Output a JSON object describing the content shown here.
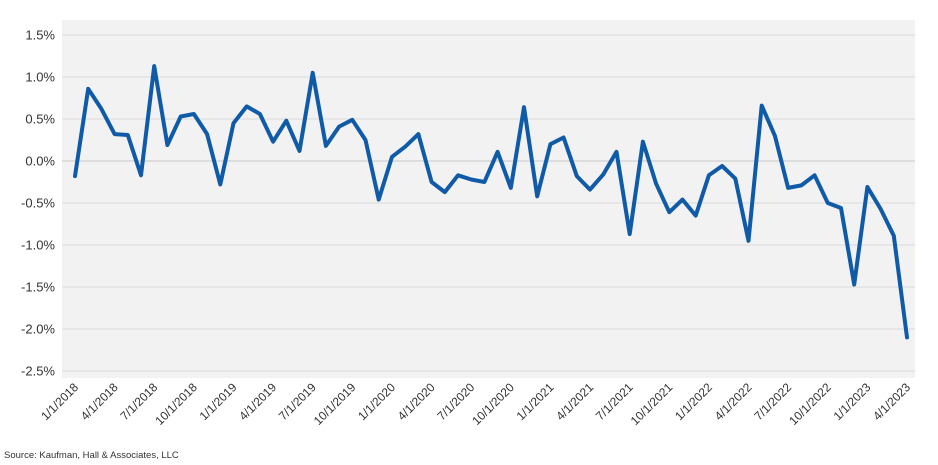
{
  "colors": {
    "line": "#0F5BA8",
    "plot_bg": "#F2F2F2",
    "grid": "#D9D9D9",
    "text": "#333333"
  },
  "source": "Source: Kaufman, Hall & Associates, LLC",
  "chart_data": {
    "type": "line",
    "title": "",
    "xlabel": "",
    "ylabel": "",
    "ylim": [
      -0.025,
      0.015
    ],
    "yticks": [
      0.015,
      0.01,
      0.005,
      0.0,
      -0.005,
      -0.01,
      -0.015,
      -0.02,
      -0.025
    ],
    "ytick_labels": [
      "1.5%",
      "1.0%",
      "0.5%",
      "0.0%",
      "-0.5%",
      "-1.0%",
      "-1.5%",
      "-2.0%",
      "-2.5%"
    ],
    "xtick_labels": [
      "1/1/2018",
      "4/1/2018",
      "7/1/2018",
      "10/1/2018",
      "1/1/2019",
      "4/1/2019",
      "7/1/2019",
      "10/1/2019",
      "1/1/2020",
      "4/1/2020",
      "7/1/2020",
      "10/1/2020",
      "1/1/2021",
      "4/1/2021",
      "7/1/2021",
      "10/1/2021",
      "1/1/2022",
      "4/1/2022",
      "7/1/2022",
      "10/1/2022",
      "1/1/2023",
      "4/1/2023"
    ],
    "x_start": "1/1/2018",
    "x_interval": "monthly",
    "grid": true,
    "legend": "none",
    "values": [
      -0.0018,
      0.0086,
      0.0062,
      0.0032,
      0.0031,
      -0.0017,
      0.0113,
      0.0019,
      0.0053,
      0.0056,
      0.0032,
      -0.0028,
      0.0045,
      0.0065,
      0.0056,
      0.0023,
      0.0048,
      0.0012,
      0.0105,
      0.0018,
      0.0041,
      0.0049,
      0.0025,
      -0.0046,
      0.0005,
      0.0017,
      0.0032,
      -0.0025,
      -0.0037,
      -0.0017,
      -0.0022,
      -0.0025,
      0.0011,
      -0.0032,
      0.0064,
      -0.0042,
      0.002,
      0.0028,
      -0.0018,
      -0.0034,
      -0.0016,
      0.0011,
      -0.0087,
      0.0023,
      -0.0027,
      -0.0061,
      -0.0046,
      -0.0065,
      -0.0017,
      -0.0006,
      -0.0021,
      -0.0095,
      0.0066,
      0.003,
      -0.0032,
      -0.0029,
      -0.0017,
      -0.005,
      -0.0056,
      -0.0147,
      -0.0031,
      -0.0057,
      -0.0089,
      -0.021
    ]
  }
}
